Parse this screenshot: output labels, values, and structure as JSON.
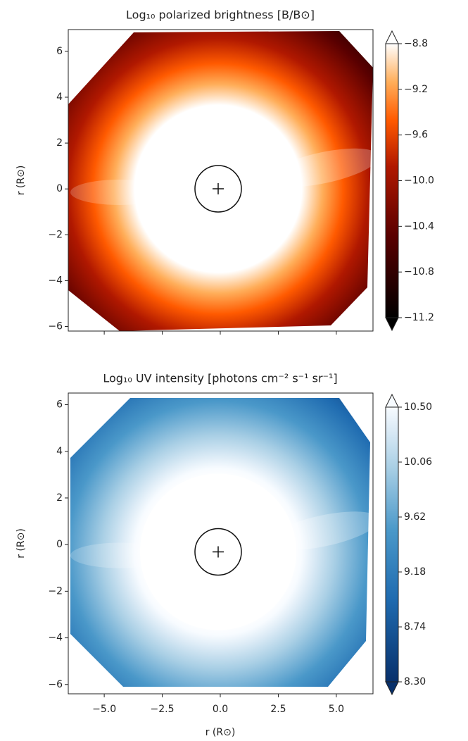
{
  "chart_data": [
    {
      "type": "image",
      "title": "Log₁₀ polarized brightness [B/B⊙]",
      "ylabel": "r (R⊙)",
      "xlim": [
        -6.55,
        6.58
      ],
      "ylim": [
        -6.2,
        6.95
      ],
      "xticks": [
        -5,
        -2.5,
        0,
        2.5,
        5
      ],
      "yticks": [
        {
          "value": -6,
          "label": "−6"
        },
        {
          "value": -4,
          "label": "−4"
        },
        {
          "value": -2,
          "label": "−2"
        },
        0,
        2,
        4,
        6
      ],
      "colormap": "gist_heat",
      "clim": [
        -11.2,
        -8.8
      ],
      "cticks": [
        {
          "value": -8.8,
          "label": "−8.8"
        },
        {
          "value": -9.2,
          "label": "−9.2"
        },
        {
          "value": -9.6,
          "label": "−9.6"
        },
        {
          "value": -10.0,
          "label": "−10.0"
        },
        {
          "value": -10.4,
          "label": "−10.4"
        },
        {
          "value": -10.8,
          "label": "−10.8"
        },
        {
          "value": -11.2,
          "label": "−11.2"
        }
      ]
    },
    {
      "type": "image",
      "title": "Log₁₀ UV intensity [photons cm⁻² s⁻¹ sr⁻¹]",
      "ylabel": "r (R⊙)",
      "xlabel": "r (R⊙)",
      "xlim": [
        -6.55,
        6.58
      ],
      "ylim": [
        -6.4,
        6.5
      ],
      "xticks": [
        {
          "value": -5,
          "label": "−5.0"
        },
        {
          "value": -2.5,
          "label": "−2.5"
        },
        {
          "value": 0,
          "label": "0.0"
        },
        {
          "value": 2.5,
          "label": "2.5"
        },
        {
          "value": 5,
          "label": "5.0"
        }
      ],
      "yticks": [
        {
          "value": -6,
          "label": "−6"
        },
        {
          "value": -4,
          "label": "−4"
        },
        {
          "value": -2,
          "label": "−2"
        },
        0,
        2,
        4,
        6
      ],
      "colormap": "Blues_r",
      "clim": [
        8.3,
        10.5
      ],
      "cticks": [
        {
          "value": 10.5,
          "label": "10.50"
        },
        10.06,
        9.62,
        9.18,
        8.74,
        {
          "value": 8.3,
          "label": "8.30"
        }
      ]
    }
  ]
}
